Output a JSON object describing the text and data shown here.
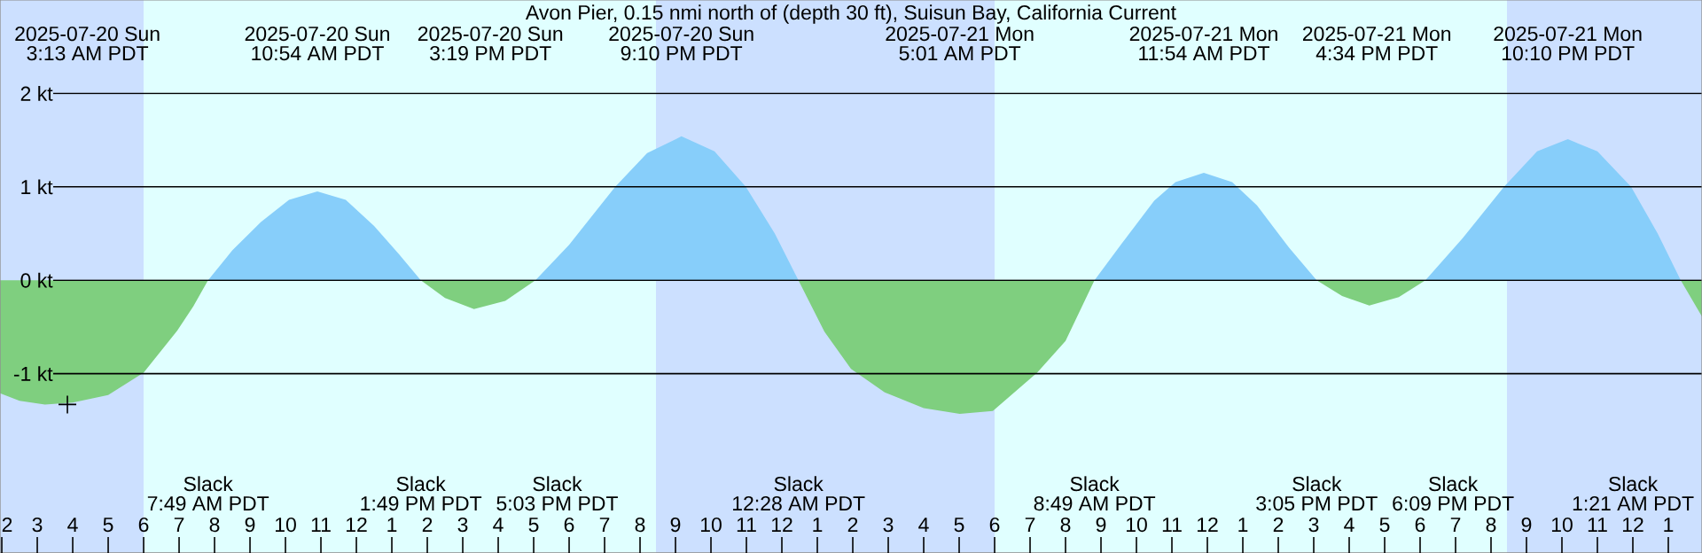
{
  "chart_data": {
    "type": "area",
    "title": "Avon Pier, 0.15 nmi north of (depth 30 ft), Suisun Bay, California Current",
    "xlim": [
      "2025-07-20T01:57",
      "2025-07-22T01:57"
    ],
    "ylim": [
      -2.92,
      3.0
    ],
    "grid": "y",
    "yticks": [
      {
        "value": 2,
        "label": "2 kt"
      },
      {
        "value": 1,
        "label": "1 kt"
      },
      {
        "value": 0,
        "label": "0 kt"
      },
      {
        "value": -1,
        "label": "-1 kt"
      }
    ],
    "xticks": [
      {
        "value": "2025-07-20T02:00",
        "label": "2"
      },
      {
        "value": "2025-07-20T03:00",
        "label": "3"
      },
      {
        "value": "2025-07-20T04:00",
        "label": "4"
      },
      {
        "value": "2025-07-20T05:00",
        "label": "5"
      },
      {
        "value": "2025-07-20T06:00",
        "label": "6"
      },
      {
        "value": "2025-07-20T07:00",
        "label": "7"
      },
      {
        "value": "2025-07-20T08:00",
        "label": "8"
      },
      {
        "value": "2025-07-20T09:00",
        "label": "9"
      },
      {
        "value": "2025-07-20T10:00",
        "label": "10"
      },
      {
        "value": "2025-07-20T11:00",
        "label": "11"
      },
      {
        "value": "2025-07-20T12:00",
        "label": "12"
      },
      {
        "value": "2025-07-20T13:00",
        "label": "1"
      },
      {
        "value": "2025-07-20T14:00",
        "label": "2"
      },
      {
        "value": "2025-07-20T15:00",
        "label": "3"
      },
      {
        "value": "2025-07-20T16:00",
        "label": "4"
      },
      {
        "value": "2025-07-20T17:00",
        "label": "5"
      },
      {
        "value": "2025-07-20T18:00",
        "label": "6"
      },
      {
        "value": "2025-07-20T19:00",
        "label": "7"
      },
      {
        "value": "2025-07-20T20:00",
        "label": "8"
      },
      {
        "value": "2025-07-20T21:00",
        "label": "9"
      },
      {
        "value": "2025-07-20T22:00",
        "label": "10"
      },
      {
        "value": "2025-07-20T23:00",
        "label": "11"
      },
      {
        "value": "2025-07-21T00:00",
        "label": "12"
      },
      {
        "value": "2025-07-21T01:00",
        "label": "1"
      },
      {
        "value": "2025-07-21T02:00",
        "label": "2"
      },
      {
        "value": "2025-07-21T03:00",
        "label": "3"
      },
      {
        "value": "2025-07-21T04:00",
        "label": "4"
      },
      {
        "value": "2025-07-21T05:00",
        "label": "5"
      },
      {
        "value": "2025-07-21T06:00",
        "label": "6"
      },
      {
        "value": "2025-07-21T07:00",
        "label": "7"
      },
      {
        "value": "2025-07-21T08:00",
        "label": "8"
      },
      {
        "value": "2025-07-21T09:00",
        "label": "9"
      },
      {
        "value": "2025-07-21T10:00",
        "label": "10"
      },
      {
        "value": "2025-07-21T11:00",
        "label": "11"
      },
      {
        "value": "2025-07-21T12:00",
        "label": "12"
      },
      {
        "value": "2025-07-21T13:00",
        "label": "1"
      },
      {
        "value": "2025-07-21T14:00",
        "label": "2"
      },
      {
        "value": "2025-07-21T15:00",
        "label": "3"
      },
      {
        "value": "2025-07-21T16:00",
        "label": "4"
      },
      {
        "value": "2025-07-21T17:00",
        "label": "5"
      },
      {
        "value": "2025-07-21T18:00",
        "label": "6"
      },
      {
        "value": "2025-07-21T19:00",
        "label": "7"
      },
      {
        "value": "2025-07-21T20:00",
        "label": "8"
      },
      {
        "value": "2025-07-21T21:00",
        "label": "9"
      },
      {
        "value": "2025-07-21T22:00",
        "label": "10"
      },
      {
        "value": "2025-07-21T23:00",
        "label": "11"
      },
      {
        "value": "2025-07-22T00:00",
        "label": "12"
      },
      {
        "value": "2025-07-22T01:00",
        "label": "1"
      }
    ],
    "bands": [
      {
        "axis": "x",
        "from": "2025-07-20T01:57",
        "to": "2025-07-20T06:00",
        "color": "#cce0ff"
      },
      {
        "axis": "x",
        "from": "2025-07-20T06:00",
        "to": "2025-07-20T20:27",
        "color": "#e0ffff"
      },
      {
        "axis": "x",
        "from": "2025-07-20T20:27",
        "to": "2025-07-21T06:00",
        "color": "#cce0ff"
      },
      {
        "axis": "x",
        "from": "2025-07-21T06:00",
        "to": "2025-07-21T20:27",
        "color": "#e0ffff"
      },
      {
        "axis": "x",
        "from": "2025-07-21T20:27",
        "to": "2025-07-22T01:57",
        "color": "#cce0ff"
      }
    ],
    "series": [
      {
        "color": "#87cefa",
        "x": [
          "2025-07-20T07:49",
          "2025-07-20T08:30",
          "2025-07-20T09:18",
          "2025-07-20T10:06",
          "2025-07-20T10:54",
          "2025-07-20T11:42",
          "2025-07-20T12:30",
          "2025-07-20T13:12",
          "2025-07-20T13:49",
          "2025-07-20T15:19",
          "2025-07-20T17:03",
          "2025-07-20T18:00",
          "2025-07-20T19:18",
          "2025-07-20T20:12",
          "2025-07-20T21:10",
          "2025-07-20T22:06",
          "2025-07-20T22:59",
          "2025-07-20T23:48",
          "2025-07-21T00:28",
          "2025-07-21T05:01",
          "2025-07-21T08:49",
          "2025-07-21T09:36",
          "2025-07-21T10:30",
          "2025-07-21T11:06",
          "2025-07-21T11:54",
          "2025-07-21T12:42",
          "2025-07-21T13:24",
          "2025-07-21T14:18",
          "2025-07-21T15:05",
          "2025-07-21T16:34",
          "2025-07-21T18:09",
          "2025-07-21T19:12",
          "2025-07-21T20:22",
          "2025-07-21T21:18",
          "2025-07-21T22:10",
          "2025-07-21T23:00",
          "2025-07-21T23:57",
          "2025-07-22T00:42",
          "2025-07-22T01:21"
        ],
        "values": [
          0,
          0.32,
          0.62,
          0.86,
          0.95,
          0.86,
          0.58,
          0.28,
          0,
          null,
          0,
          0.38,
          1.0,
          1.36,
          1.54,
          1.38,
          1.0,
          0.5,
          0,
          null,
          0,
          0.4,
          0.85,
          1.05,
          1.15,
          1.05,
          0.8,
          0.35,
          0,
          null,
          0,
          0.45,
          1.0,
          1.38,
          1.51,
          1.38,
          1.0,
          0.5,
          0
        ]
      },
      {
        "color": "#7fcf7f",
        "x": [
          "2025-07-20T01:57",
          "2025-07-20T02:30",
          "2025-07-20T03:13",
          "2025-07-20T04:00",
          "2025-07-20T05:00",
          "2025-07-20T06:00",
          "2025-07-20T06:57",
          "2025-07-20T07:24",
          "2025-07-20T07:49",
          "2025-07-20T10:54",
          "2025-07-20T13:49",
          "2025-07-20T14:30",
          "2025-07-20T15:19",
          "2025-07-20T16:12",
          "2025-07-20T17:03",
          "2025-07-20T21:10",
          "2025-07-21T00:28",
          "2025-07-21T01:12",
          "2025-07-21T01:57",
          "2025-07-21T02:54",
          "2025-07-21T04:00",
          "2025-07-21T05:01",
          "2025-07-21T05:57",
          "2025-07-21T07:12",
          "2025-07-21T08:00",
          "2025-07-21T08:49",
          "2025-07-21T11:54",
          "2025-07-21T15:05",
          "2025-07-21T15:48",
          "2025-07-21T16:34",
          "2025-07-21T17:24",
          "2025-07-21T18:09",
          "2025-07-21T22:10",
          "2025-07-22T01:21",
          "2025-07-22T01:57"
        ],
        "values": [
          -1.21,
          -1.29,
          -1.33,
          -1.31,
          -1.23,
          -0.99,
          -0.54,
          -0.28,
          0,
          null,
          0,
          -0.19,
          -0.31,
          -0.22,
          0,
          null,
          0,
          -0.55,
          -0.95,
          -1.2,
          -1.37,
          -1.43,
          -1.4,
          -0.99,
          -0.65,
          0,
          null,
          0,
          -0.17,
          -0.27,
          -0.18,
          0,
          null,
          0,
          -0.39
        ]
      },
      {
        "type": "scatter",
        "marker": "cross",
        "color": "#000000",
        "x": [
          "2025-07-20T03:51"
        ],
        "values": [
          -1.33
        ]
      }
    ],
    "annotations": [
      "2025-07-20 Sun",
      "3:13 AM PDT",
      "2025-07-20 Sun",
      "10:54 AM PDT",
      "2025-07-20 Sun",
      "3:19 PM PDT",
      "2025-07-20 Sun",
      "9:10 PM PDT",
      "2025-07-21 Mon",
      "5:01 AM PDT",
      "2025-07-21 Mon",
      "11:54 AM PDT",
      "2025-07-21 Mon",
      "4:34 PM PDT",
      "2025-07-21 Mon",
      "10:10 PM PDT",
      "Slack",
      "7:49 AM PDT",
      "Slack",
      "1:49 PM PDT",
      "Slack",
      "5:03 PM PDT",
      "Slack",
      "12:28 AM PDT",
      "Slack",
      "8:49 AM PDT",
      "Slack",
      "3:05 PM PDT",
      "Slack",
      "6:09 PM PDT",
      "Slack",
      "1:21 AM PDT"
    ]
  }
}
